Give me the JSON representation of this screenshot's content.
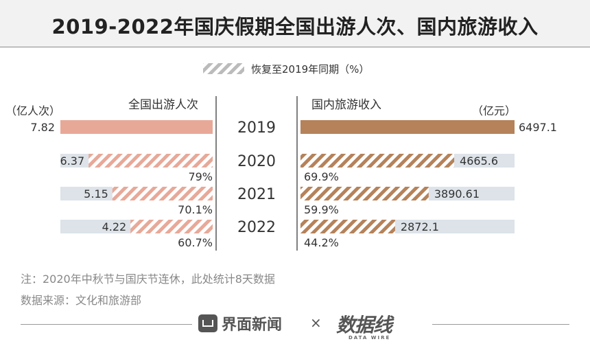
{
  "title": "2019-2022年国庆假期全国出游人次、国内旅游收入",
  "legend": {
    "label": "恢复至2019年同期（%）"
  },
  "colors": {
    "trips_fill": "#e8a898",
    "revenue_fill": "#b5825a",
    "track": "#dde3e8",
    "divider": "#555555",
    "text": "#333333"
  },
  "chart_data": [
    {
      "type": "bar",
      "orientation": "horizontal",
      "direction": "right-to-left",
      "title": "全国出游人次",
      "unit": "（亿人次）",
      "categories": [
        "2019",
        "2020",
        "2021",
        "2022"
      ],
      "values": [
        7.82,
        6.37,
        5.15,
        4.22
      ],
      "value_labels": [
        "7.82",
        "6.37",
        "5.15",
        "4.22"
      ],
      "recovery_labels": [
        "",
        "79%",
        "70.1%",
        "60.7%"
      ],
      "recovery_percent": [
        100,
        79,
        70.1,
        60.7
      ]
    },
    {
      "type": "bar",
      "orientation": "horizontal",
      "direction": "left-to-right",
      "title": "国内旅游收入",
      "unit": "（亿元）",
      "categories": [
        "2019",
        "2020",
        "2021",
        "2022"
      ],
      "values": [
        6497.1,
        4665.6,
        3890.61,
        2872.1
      ],
      "value_labels": [
        "6497.1",
        "4665.6",
        "3890.61",
        "2872.1"
      ],
      "recovery_labels": [
        "",
        "69.9%",
        "59.9%",
        "44.2%"
      ],
      "recovery_percent": [
        100,
        69.9,
        59.9,
        44.2
      ]
    }
  ],
  "notes": {
    "line1": "注：2020年中秋节与国庆节连休，此处统计8天数据",
    "line2": "数据来源：文化和旅游部"
  },
  "footer": {
    "brand1": "界面新闻",
    "separator": "×",
    "brand2": "数据线",
    "brand2_sub": "DATA WIRE"
  }
}
